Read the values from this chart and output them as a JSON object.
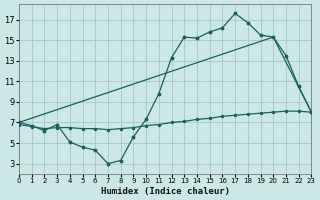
{
  "xlabel": "Humidex (Indice chaleur)",
  "bg_color": "#cce8e6",
  "grid_color": "#aaccca",
  "line_color": "#1a6060",
  "xlim": [
    0,
    23
  ],
  "ylim": [
    2.0,
    18.5
  ],
  "yticks": [
    3,
    5,
    7,
    9,
    11,
    13,
    15,
    17
  ],
  "xticks": [
    0,
    1,
    2,
    3,
    4,
    5,
    6,
    7,
    8,
    9,
    10,
    11,
    12,
    13,
    14,
    15,
    16,
    17,
    18,
    19,
    20,
    21,
    22,
    23
  ],
  "line1_x": [
    0,
    1,
    2,
    3,
    4,
    5,
    6,
    7,
    8,
    9,
    10,
    11,
    12,
    13,
    14,
    15,
    16,
    17,
    18,
    19,
    20,
    21,
    22,
    23
  ],
  "line1_y": [
    7.0,
    6.7,
    6.2,
    6.8,
    5.1,
    4.6,
    4.3,
    3.0,
    3.3,
    5.6,
    7.3,
    9.8,
    13.3,
    15.3,
    15.2,
    15.8,
    16.2,
    17.6,
    16.7,
    15.5,
    15.3,
    13.5,
    10.5,
    8.0
  ],
  "line2_x": [
    0,
    20,
    23
  ],
  "line2_y": [
    7.0,
    15.3,
    8.0
  ],
  "line3_x": [
    0,
    1,
    2,
    3,
    4,
    5,
    6,
    7,
    8,
    9,
    10,
    11,
    12,
    13,
    14,
    15,
    16,
    17,
    18,
    19,
    20,
    21,
    22,
    23
  ],
  "line3_y": [
    6.8,
    6.6,
    6.4,
    6.5,
    6.5,
    6.4,
    6.4,
    6.3,
    6.4,
    6.5,
    6.7,
    6.8,
    7.0,
    7.1,
    7.3,
    7.4,
    7.6,
    7.7,
    7.8,
    7.9,
    8.0,
    8.1,
    8.1,
    8.0
  ],
  "xtick_fontsize": 5.0,
  "ytick_fontsize": 6.0,
  "xlabel_fontsize": 6.5
}
